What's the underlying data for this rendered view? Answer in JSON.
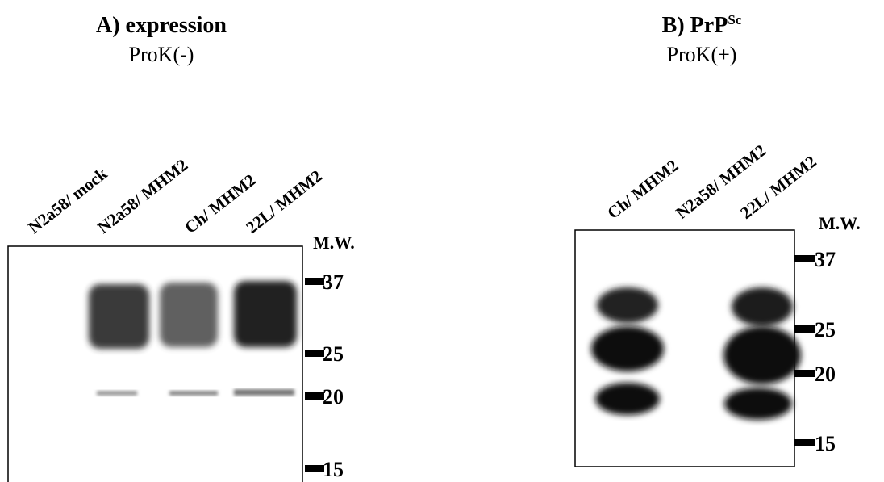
{
  "panel_a": {
    "title": "A) expression",
    "subtitle": "ProK(-)",
    "lanes": [
      "N2a58/ mock",
      "N2a58/ MHM2",
      "Ch/ MHM2",
      "22L/ MHM2"
    ],
    "mw_label": "M.W.",
    "markers": [
      "37",
      "25",
      "20",
      "15"
    ]
  },
  "panel_b": {
    "title": "B) PrP",
    "title_superscript": "Sc",
    "subtitle": "ProK(+)",
    "lanes": [
      "Ch/ MHM2",
      "N2a58/ MHM2",
      "22L/ MHM2"
    ],
    "mw_label": "M.W.",
    "markers": [
      "37",
      "25",
      "20",
      "15"
    ]
  }
}
